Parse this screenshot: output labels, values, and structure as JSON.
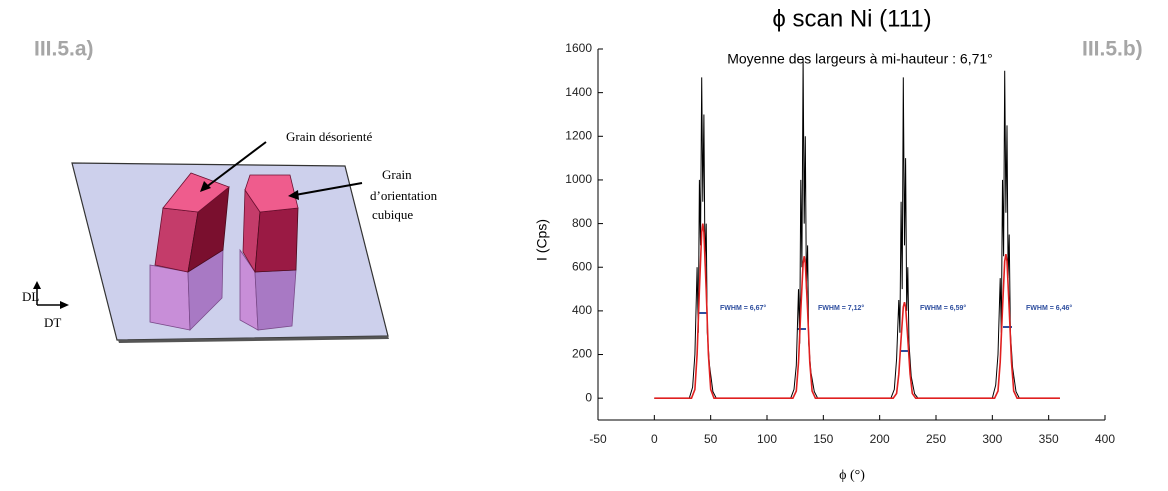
{
  "panels": [
    "III.5.a)",
    "III.5.b)"
  ],
  "diagram": {
    "misoriented": "Grain désorienté",
    "cubic": [
      "Grain",
      "d’orientation",
      "cubique"
    ],
    "dl": "DL",
    "dt": "DT"
  },
  "chart_data": {
    "type": "line",
    "title": "ϕ scan Ni (111)",
    "subtitle": "Moyenne des largeurs à mi-hauteur : 6,71°",
    "x_label": "ϕ (°)",
    "y_label": "I (Cps)",
    "annotations": [
      "FWHM = 6,67°",
      "FWHM = 7,12°",
      "FWHM = 6,59°",
      "FWHM = 6,46°"
    ],
    "xlim": [
      -50,
      400
    ],
    "xticks": [
      -50,
      0,
      50,
      100,
      150,
      200,
      250,
      300,
      350,
      400
    ],
    "ylim": [
      -100,
      1600
    ],
    "yticks": [
      0,
      200,
      400,
      600,
      800,
      1000,
      1200,
      1400,
      1600
    ],
    "series": [
      {
        "color": "#000000",
        "x": [
          0,
          31,
          34,
          36,
          38,
          39,
          40,
          41,
          42,
          43,
          44,
          45,
          46,
          47,
          49,
          52,
          55,
          121,
          124,
          126,
          128,
          129,
          130,
          131,
          132,
          133,
          134,
          135,
          136,
          137,
          139,
          142,
          145,
          210,
          213,
          215,
          217,
          218,
          219,
          220,
          221,
          222,
          223,
          224,
          225,
          226,
          228,
          231,
          234,
          300,
          303,
          305,
          307,
          308,
          309,
          310,
          311,
          312,
          313,
          314,
          315,
          316,
          318,
          321,
          324,
          360
        ],
        "values": [
          0,
          0,
          50,
          200,
          600,
          300,
          1000,
          700,
          1470,
          900,
          1300,
          600,
          800,
          300,
          150,
          30,
          0,
          0,
          40,
          150,
          500,
          250,
          1000,
          600,
          1560,
          800,
          1200,
          500,
          700,
          250,
          120,
          30,
          0,
          0,
          40,
          180,
          450,
          300,
          900,
          500,
          1470,
          700,
          1100,
          400,
          600,
          250,
          100,
          20,
          0,
          0,
          60,
          200,
          550,
          300,
          1000,
          650,
          1500,
          850,
          1250,
          550,
          750,
          300,
          140,
          30,
          0,
          0
        ]
      },
      {
        "color": "#e02020",
        "x": [
          0,
          33,
          36,
          38,
          40,
          42,
          43,
          44,
          46,
          48,
          50,
          53,
          123,
          126,
          128,
          130,
          132,
          133,
          134,
          136,
          138,
          140,
          143,
          212,
          215,
          217,
          219,
          221,
          222,
          223,
          225,
          227,
          229,
          232,
          302,
          305,
          307,
          309,
          311,
          312,
          313,
          315,
          317,
          319,
          322,
          360
        ],
        "values": [
          0,
          0,
          40,
          200,
          496,
          760,
          800,
          760,
          496,
          200,
          40,
          0,
          0,
          33,
          163,
          403,
          618,
          650,
          618,
          403,
          163,
          33,
          0,
          0,
          22,
          110,
          273,
          418,
          440,
          418,
          273,
          110,
          22,
          0,
          0,
          33,
          165,
          409,
          627,
          660,
          627,
          409,
          165,
          33,
          0,
          0
        ]
      }
    ]
  }
}
